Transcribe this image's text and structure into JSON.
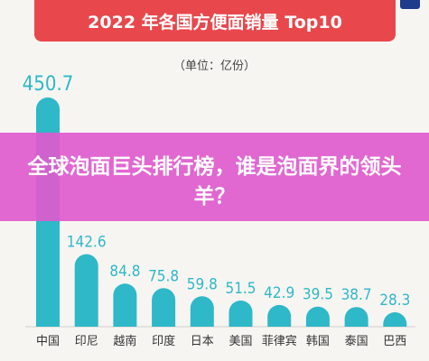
{
  "chart_data": {
    "type": "bar",
    "title": "2022 年各国方便面销量 Top10",
    "unit_note": "（单位：亿份）",
    "categories": [
      "中国",
      "印尼",
      "越南",
      "印度",
      "日本",
      "美国",
      "菲律宾",
      "韩国",
      "泰国",
      "巴西"
    ],
    "values": [
      450.7,
      142.6,
      84.8,
      75.8,
      59.8,
      51.5,
      42.9,
      39.5,
      38.7,
      28.3
    ],
    "value_labels": [
      "450.7",
      "142.6",
      "84.8",
      "75.8",
      "59.8",
      "51.5",
      "42.9",
      "39.5",
      "38.7",
      "28.3"
    ],
    "ylim": [
      0,
      450.7
    ],
    "bar_color": "#2eb8c8",
    "label_color": "#2eb8c8"
  },
  "overlay": {
    "text": "全球泡面巨头排行榜，谁是泡面界的领头羊？",
    "color": "#de5ace"
  },
  "colors": {
    "banner": "#e8474c",
    "background": "#f7f5f2"
  }
}
